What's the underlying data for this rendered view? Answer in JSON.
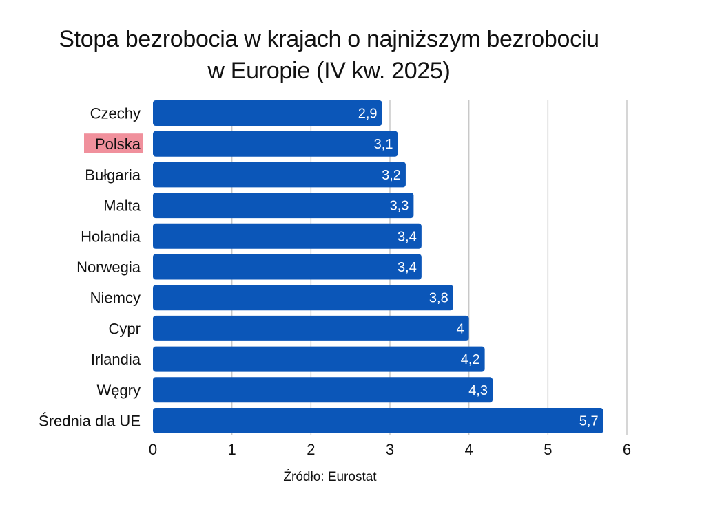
{
  "chart_data": {
    "type": "bar",
    "orientation": "horizontal",
    "title_lines": [
      "Stopa bezrobocia w krajach o najniższym bezrobociu",
      "w Europie (IV kw. 2025)"
    ],
    "categories": [
      "Czechy",
      "Polska",
      "Bułgaria",
      "Malta",
      "Holandia",
      "Norwegia",
      "Niemcy",
      "Cypr",
      "Irlandia",
      "Węgry",
      "Średnia dla UE"
    ],
    "values": [
      2.9,
      3.1,
      3.2,
      3.3,
      3.4,
      3.4,
      3.8,
      4,
      4.2,
      4.3,
      5.7
    ],
    "value_labels": [
      "2,9",
      "3,1",
      "3,2",
      "3,3",
      "3,4",
      "3,4",
      "3,8",
      "4",
      "4,2",
      "4,3",
      "5,7"
    ],
    "x_ticks": [
      "0",
      "1",
      "2",
      "3",
      "4",
      "5",
      "6"
    ],
    "xlim": [
      0,
      6
    ],
    "xlabel": "",
    "ylabel": "",
    "grid": true,
    "highlighted_category": "Polska",
    "source": "Źródło: Eurostat",
    "colors": {
      "bar": "#0b56b8",
      "grid": "#c8c8c8",
      "highlight": "#f0909c",
      "value_text": "#ffffff"
    }
  }
}
